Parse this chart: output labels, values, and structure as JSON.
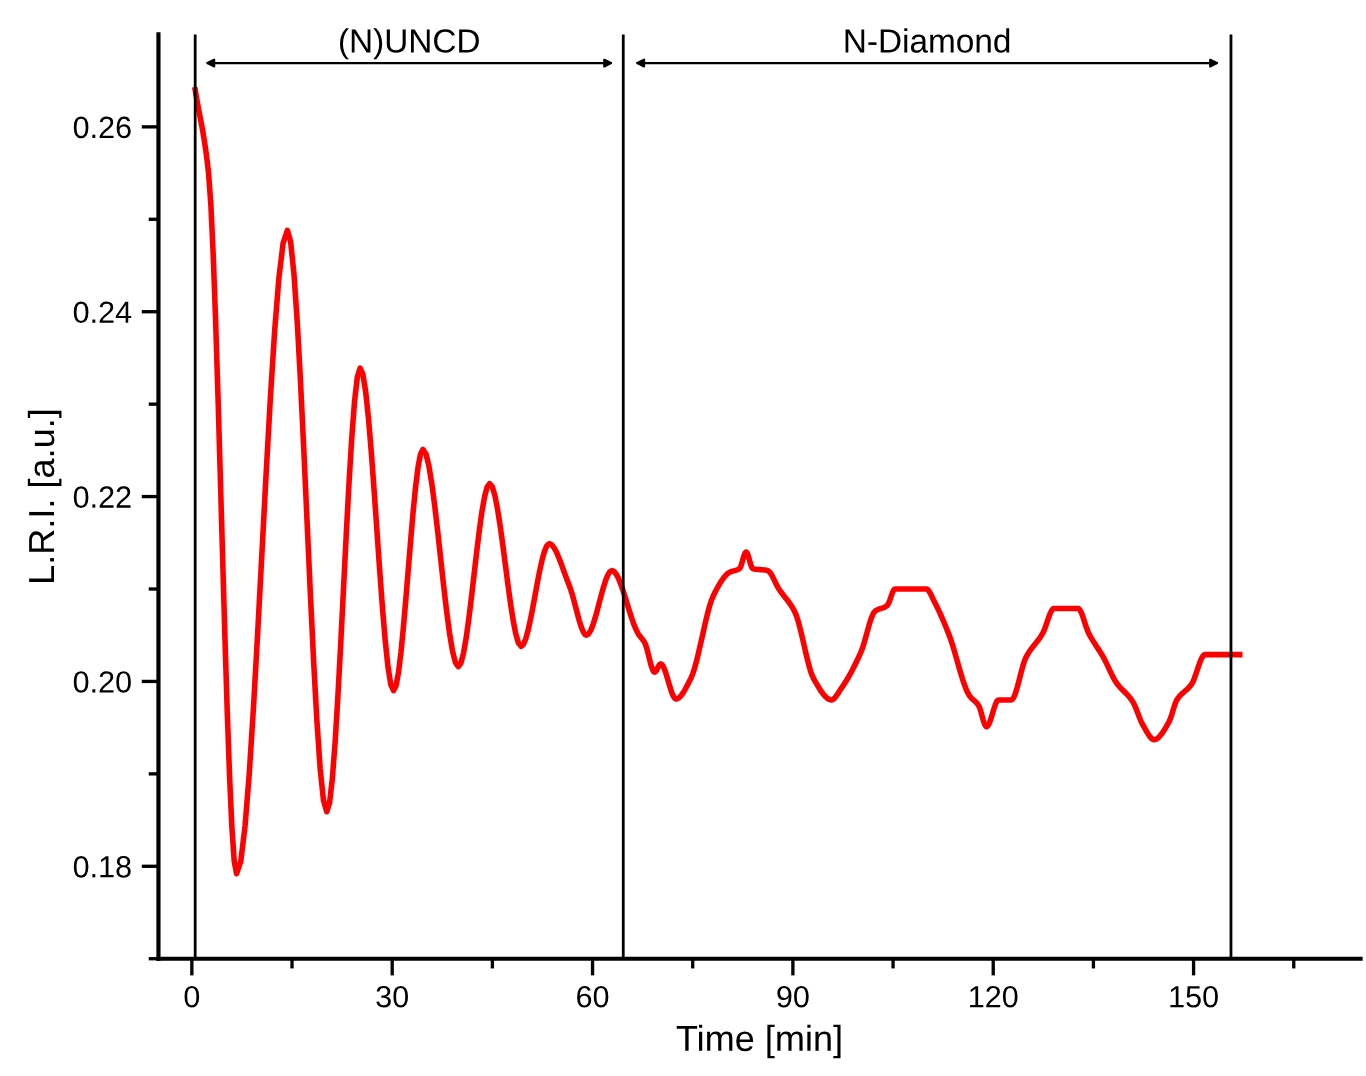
{
  "chart_data": {
    "type": "line",
    "xlabel": "Time [min]",
    "ylabel": "L.R.I. [a.u.]",
    "xlim": [
      -5,
      175
    ],
    "ylim": [
      0.17,
      0.27
    ],
    "xticks": [
      0,
      {
        "value": 15,
        "label": null
      },
      30,
      {
        "value": 45,
        "label": null
      },
      60,
      {
        "value": 75,
        "label": null
      },
      90,
      {
        "value": 105,
        "label": null
      },
      120,
      {
        "value": 135,
        "label": null
      },
      150,
      {
        "value": 165,
        "label": null
      }
    ],
    "yticks": [
      {
        "value": 0.17,
        "label": null
      },
      {
        "value": 0.18,
        "label": "0.18"
      },
      {
        "value": 0.19,
        "label": null
      },
      {
        "value": 0.2,
        "label": "0.20"
      },
      {
        "value": 0.21,
        "label": null
      },
      {
        "value": 0.22,
        "label": "0.22"
      },
      {
        "value": 0.23,
        "label": null
      },
      {
        "value": 0.24,
        "label": "0.24"
      },
      {
        "value": 0.25,
        "label": null
      },
      {
        "value": 0.26,
        "label": "0.26"
      }
    ],
    "grid": false,
    "legend": false,
    "marker": "none",
    "line_style": "solid",
    "series": [
      {
        "color": "#ff0000",
        "x": [
          0.5,
          2.5,
          6.7,
          14.3,
          20.2,
          25.2,
          30.2,
          34.6,
          39.9,
          44.6,
          49.3,
          53.5,
          56.5,
          59.1,
          62.9,
          66.8,
          67.8,
          69.3,
          70.2,
          72.5,
          74.7,
          78.1,
          80.5,
          82.0,
          83.0,
          84.0,
          86.2,
          87.9,
          90.3,
          93.1,
          95.8,
          97.2,
          100.2,
          102.3,
          104.1,
          105.3,
          110.0,
          111.2,
          113.4,
          116.4,
          117.8,
          119.0,
          120.8,
          122.7,
          124.9,
          127.4,
          129.1,
          132.7,
          134.3,
          136.5,
          138.4,
          140.9,
          142.4,
          144.1,
          146.3,
          147.5,
          149.7,
          151.7,
          156.9
        ],
        "values": [
          0.264,
          0.255,
          0.1792,
          0.2488,
          0.1859,
          0.2339,
          0.199,
          0.2251,
          0.2016,
          0.2214,
          0.2038,
          0.2149,
          0.2104,
          0.205,
          0.212,
          0.2052,
          0.2042,
          0.201,
          0.2019,
          0.1981,
          0.2003,
          0.2093,
          0.2118,
          0.2122,
          0.214,
          0.2122,
          0.212,
          0.21,
          0.2075,
          0.2003,
          0.198,
          0.1992,
          0.2032,
          0.2076,
          0.2082,
          0.21,
          0.21,
          0.2086,
          0.205,
          0.1985,
          0.1974,
          0.1951,
          0.198,
          0.198,
          0.2026,
          0.2052,
          0.2079,
          0.2079,
          0.2052,
          0.2026,
          0.1999,
          0.1978,
          0.1953,
          0.1937,
          0.1956,
          0.198,
          0.1997,
          0.2029,
          0.2029
        ]
      }
    ],
    "ref_lines": [
      {
        "axis": "x",
        "value": 0.5,
        "color": "#000000"
      },
      {
        "axis": "x",
        "value": 64.6,
        "color": "#000000"
      },
      {
        "axis": "x",
        "value": 155.6,
        "color": "#000000"
      }
    ],
    "annotations": [
      "(N)UNCD",
      "N-Diamond"
    ]
  }
}
